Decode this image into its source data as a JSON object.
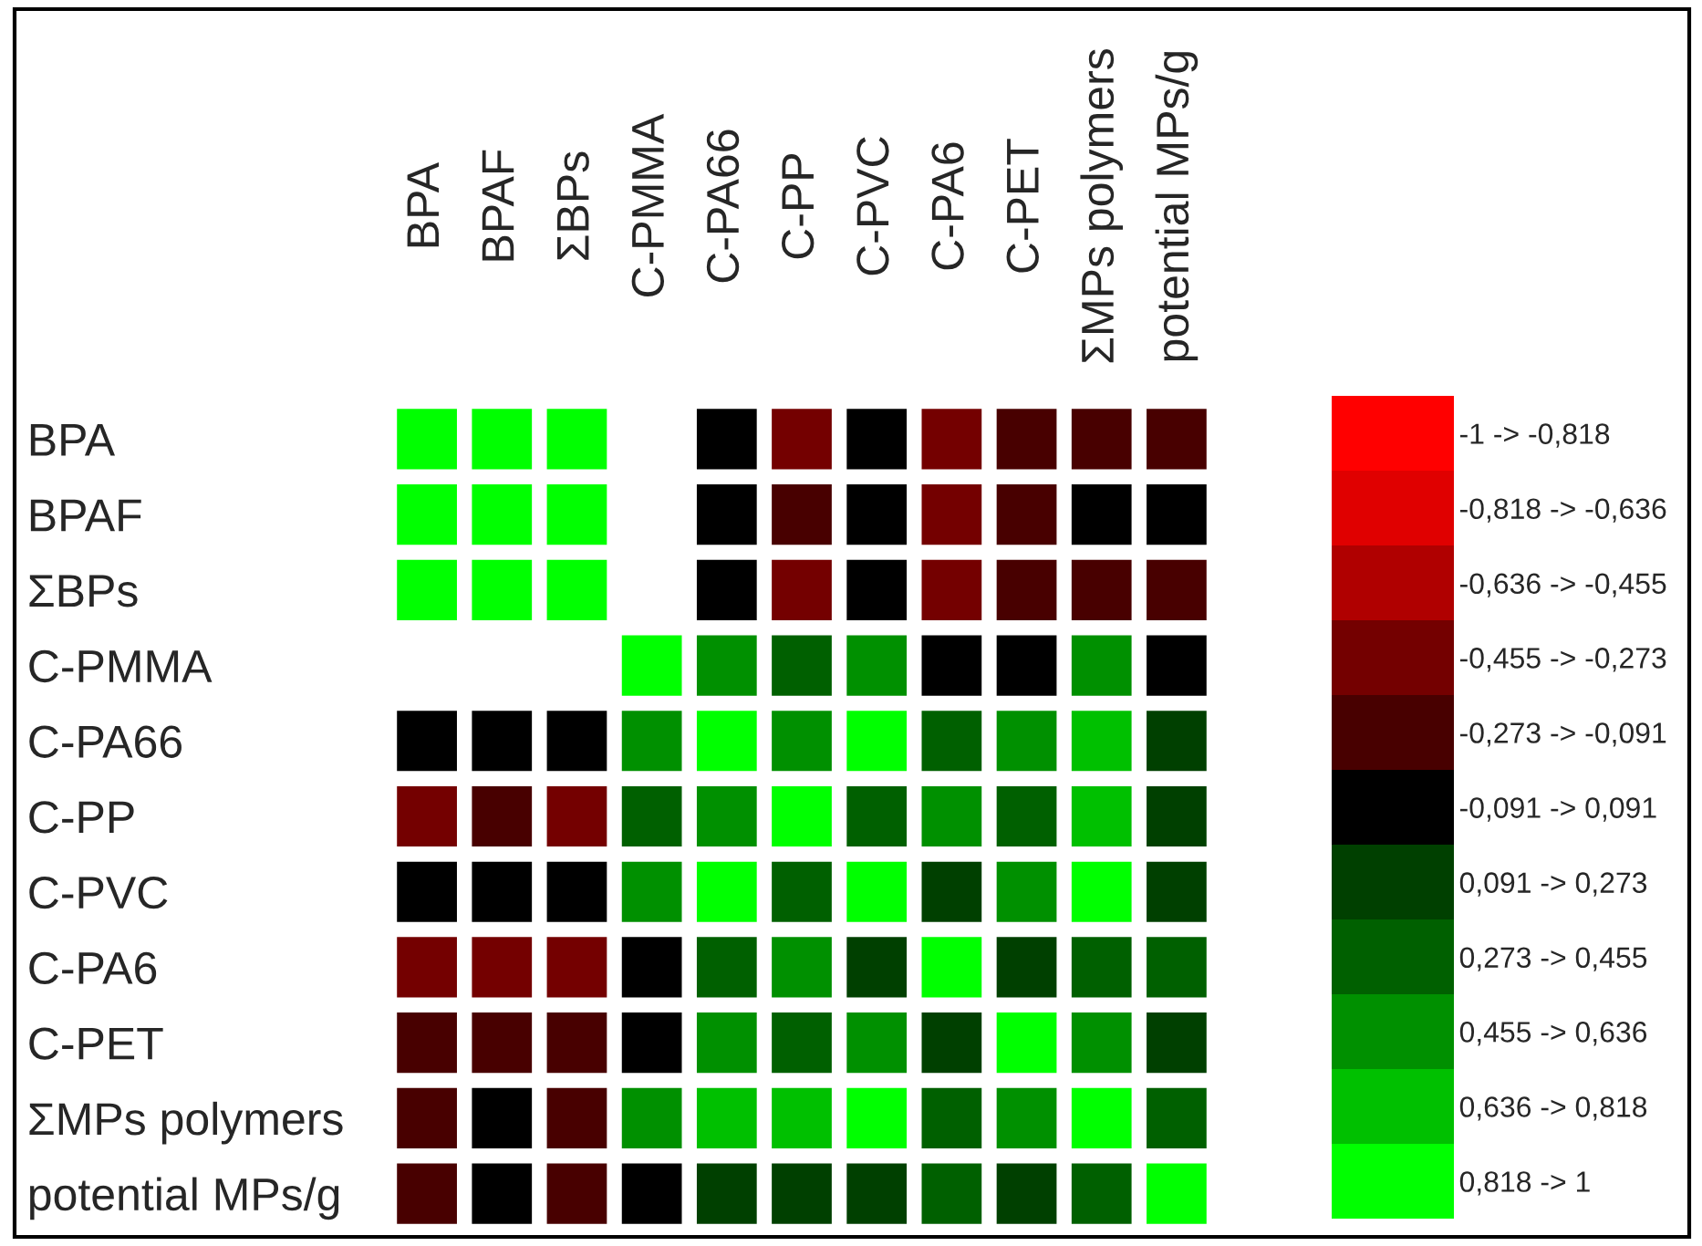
{
  "chart_data": {
    "type": "heatmap",
    "categories": [
      "BPA",
      "BPAF",
      "ΣBPs",
      "C-PMMA",
      "C-PA66",
      "C-PP",
      "C-PVC",
      "C-PA6",
      "C-PET",
      "ΣMPs polymers",
      "potential MPs/g"
    ],
    "y_categories": [
      "BPA",
      "BPAF",
      "ΣBPs",
      "C-PMMA",
      "C-PA66",
      "C-PP",
      "C-PVC",
      "C-PA6",
      "C-PET",
      "ΣMPs polymers",
      "potential MPs/g"
    ],
    "cells": [
      [
        1,
        0.91,
        0.91,
        null,
        0,
        -0.36,
        0,
        -0.36,
        -0.18,
        -0.18,
        -0.18
      ],
      [
        0.91,
        1,
        0.91,
        null,
        0,
        -0.18,
        0,
        -0.36,
        -0.18,
        0,
        0
      ],
      [
        0.91,
        0.91,
        1,
        null,
        0,
        -0.36,
        0,
        -0.36,
        -0.18,
        -0.18,
        -0.18
      ],
      [
        null,
        null,
        null,
        1,
        0.55,
        0.36,
        0.55,
        0,
        0,
        0.55,
        0
      ],
      [
        0,
        0,
        0,
        0.55,
        1,
        0.55,
        0.91,
        0.36,
        0.55,
        0.73,
        0.18
      ],
      [
        -0.36,
        -0.18,
        -0.36,
        0.36,
        0.55,
        1,
        0.36,
        0.55,
        0.36,
        0.73,
        0.18
      ],
      [
        0,
        0,
        0,
        0.55,
        0.91,
        0.36,
        1,
        0.18,
        0.55,
        0.91,
        0.18
      ],
      [
        -0.36,
        -0.36,
        -0.36,
        0,
        0.36,
        0.55,
        0.18,
        1,
        0.18,
        0.36,
        0.36
      ],
      [
        -0.18,
        -0.18,
        -0.18,
        0,
        0.55,
        0.36,
        0.55,
        0.18,
        1,
        0.55,
        0.18
      ],
      [
        -0.18,
        0,
        -0.18,
        0.55,
        0.73,
        0.73,
        0.91,
        0.36,
        0.55,
        1,
        0.36
      ],
      [
        -0.18,
        0,
        -0.18,
        0,
        0.18,
        0.18,
        0.18,
        0.36,
        0.18,
        0.36,
        1
      ]
    ],
    "clim": [
      -1,
      1
    ],
    "cticks": [
      {
        "value": -0.909,
        "label": "-1 -> -0,818"
      },
      {
        "value": -0.727,
        "label": "-0,818 -> -0,636"
      },
      {
        "value": -0.545,
        "label": "-0,636 -> -0,455"
      },
      {
        "value": -0.364,
        "label": "-0,455 -> -0,273"
      },
      {
        "value": -0.182,
        "label": "-0,273 -> -0,091"
      },
      {
        "value": 0,
        "label": "-0,091 -> 0,091"
      },
      {
        "value": 0.182,
        "label": "0,091 -> 0,273"
      },
      {
        "value": 0.364,
        "label": "0,273 -> 0,455"
      },
      {
        "value": 0.545,
        "label": "0,455 -> 0,636"
      },
      {
        "value": 0.727,
        "label": "0,636 -> 0,818"
      },
      {
        "value": 0.909,
        "label": "0,818 -> 1"
      }
    ],
    "colors": [
      "#ff0000",
      "#e00000",
      "#b00000",
      "#740000",
      "#480000",
      "#000000",
      "#004000",
      "#006000",
      "#009000",
      "#00c000",
      "#00ff00"
    ]
  }
}
